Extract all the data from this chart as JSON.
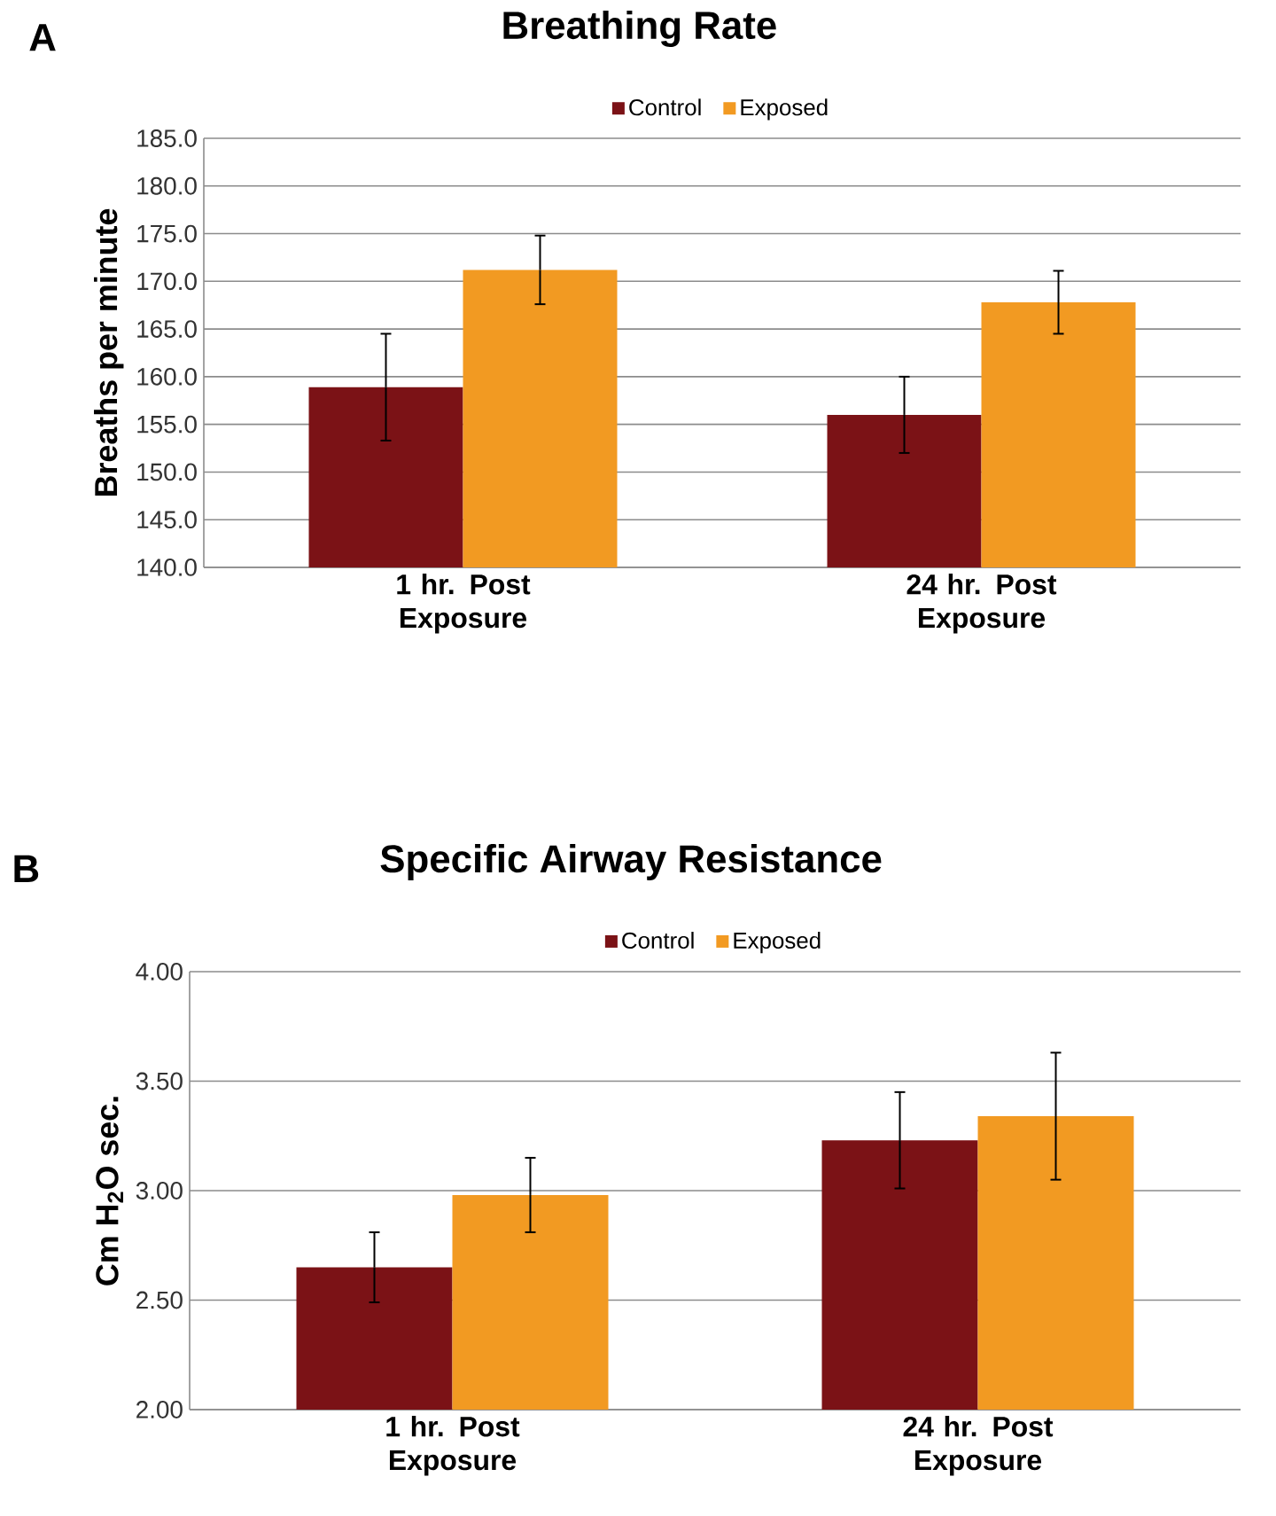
{
  "chart_data": [
    {
      "type": "bar",
      "title": "Breathing Rate",
      "ylabel": "Breaths per minute",
      "annotations": [
        "A"
      ],
      "categories": [
        "1 hr. Post Exposure",
        "24 hr. Post Exposure"
      ],
      "series": [
        {
          "name": "Control",
          "color": "#7b1216",
          "values": [
            158.9,
            156.0
          ],
          "errors": [
            5.6,
            4.0
          ]
        },
        {
          "name": "Exposed",
          "color": "#f29a22",
          "values": [
            171.2,
            167.8
          ],
          "errors": [
            3.6,
            3.3
          ]
        }
      ],
      "ylim": [
        140,
        185
      ],
      "yticks": [
        {
          "value": 140,
          "label": "140.0"
        },
        {
          "value": 145,
          "label": "145.0"
        },
        {
          "value": 150,
          "label": "150.0"
        },
        {
          "value": 155,
          "label": "155.0"
        },
        {
          "value": 160,
          "label": "160.0"
        },
        {
          "value": 165,
          "label": "165.0"
        },
        {
          "value": 170,
          "label": "170.0"
        },
        {
          "value": 175,
          "label": "175.0"
        },
        {
          "value": 180,
          "label": "180.0"
        },
        {
          "value": 185,
          "label": "185.0"
        }
      ],
      "grid": "y",
      "legend": "top"
    },
    {
      "type": "bar",
      "title": "Specific Airway Resistance",
      "ylabel": "Cm H$_{2}$O sec.",
      "annotations": [
        "B"
      ],
      "categories": [
        "1 hr. Post Exposure",
        "24 hr. Post Exposure"
      ],
      "series": [
        {
          "name": "Control",
          "color": "#7b1216",
          "values": [
            2.65,
            3.23
          ],
          "errors": [
            0.16,
            0.22
          ]
        },
        {
          "name": "Exposed",
          "color": "#f29a22",
          "values": [
            2.98,
            3.34
          ],
          "errors": [
            0.17,
            0.29
          ]
        }
      ],
      "ylim": [
        2,
        4
      ],
      "yticks": [
        {
          "value": 2,
          "label": "2.00"
        },
        {
          "value": 2.5,
          "label": "2.50"
        },
        {
          "value": 3,
          "label": "3.00"
        },
        {
          "value": 3.5,
          "label": "3.50"
        },
        {
          "value": 4,
          "label": "4.00"
        }
      ],
      "grid": "y",
      "legend": "top"
    }
  ]
}
